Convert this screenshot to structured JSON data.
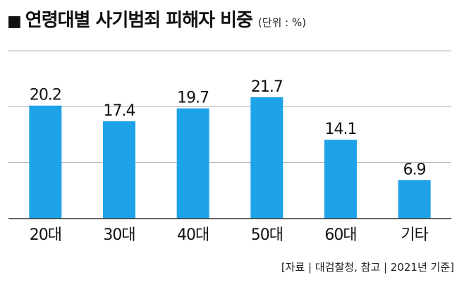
{
  "header": {
    "marker": "■",
    "title": "연령대별 사기범죄 피해자 비중",
    "unit": "(단위 : %)"
  },
  "source": "[자료 | 대검찰청, 참고 | 2021년 기준]",
  "colors": {
    "bar": "#1fa3e8",
    "gridline": "#b0b0b0",
    "baseline": "#333333"
  },
  "chart_data": {
    "type": "bar",
    "title": "연령대별 사기범죄 피해자 비중",
    "unit": "(단위 : %)",
    "categories": [
      "20대",
      "30대",
      "40대",
      "50대",
      "60대",
      "기타"
    ],
    "values": [
      20.2,
      17.4,
      19.7,
      21.7,
      14.1,
      6.9
    ],
    "value_labels": [
      "20.2",
      "17.4",
      "19.7",
      "21.7",
      "14.1",
      "6.9"
    ],
    "ylim": [
      0,
      30
    ],
    "gridlines": [
      10,
      20,
      30
    ],
    "grid": true,
    "legend": "none"
  }
}
